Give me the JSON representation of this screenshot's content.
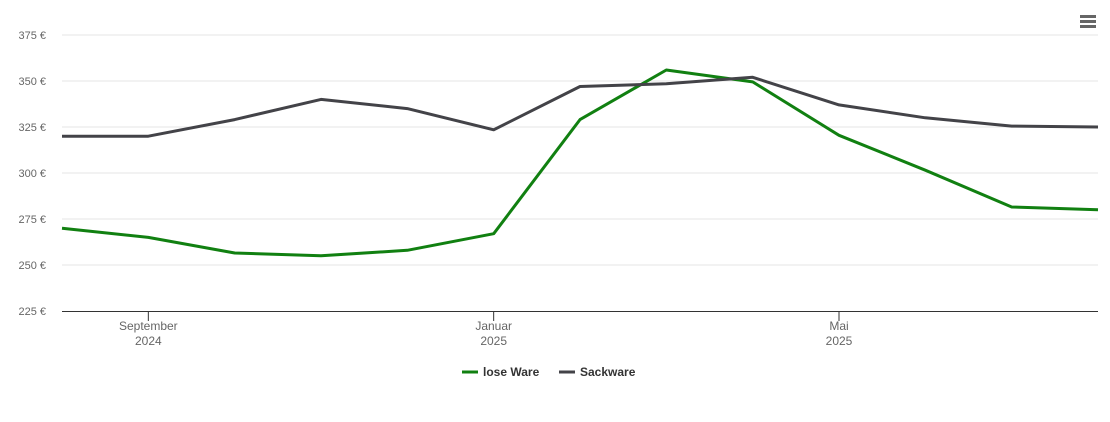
{
  "chart_data": {
    "type": "line",
    "x": [
      "2024-08",
      "2024-09",
      "2024-10",
      "2024-11",
      "2024-12",
      "2025-01",
      "2025-02",
      "2025-03",
      "2025-04",
      "2025-05",
      "2025-06",
      "2025-07",
      "2025-08"
    ],
    "xlim": [
      "2024-08",
      "2025-08"
    ],
    "xticks": [
      {
        "value": "2024-09",
        "label": "September",
        "year": "2024"
      },
      {
        "value": "2025-01",
        "label": "Januar",
        "year": "2025"
      },
      {
        "value": "2025-05",
        "label": "Mai",
        "year": "2025"
      }
    ],
    "ylim": [
      225,
      375
    ],
    "yticks": [
      {
        "value": 225,
        "label": "225 €"
      },
      {
        "value": 250,
        "label": "250 €"
      },
      {
        "value": 275,
        "label": "275 €"
      },
      {
        "value": 300,
        "label": "300 €"
      },
      {
        "value": 325,
        "label": "325 €"
      },
      {
        "value": 350,
        "label": "350 €"
      },
      {
        "value": 375,
        "label": "375 €"
      }
    ],
    "grid": true,
    "legend": "bottom",
    "series": [
      {
        "name": "lose Ware",
        "color": "#118011",
        "values": [
          270,
          265,
          256.5,
          255,
          258,
          267,
          329,
          356,
          349.5,
          320.5,
          301.5,
          281.5,
          280
        ]
      },
      {
        "name": "Sackware",
        "color": "#434348",
        "values": [
          320,
          320,
          329,
          340,
          335,
          323.5,
          347,
          348.5,
          352,
          337,
          330,
          325.5,
          325
        ]
      }
    ]
  }
}
